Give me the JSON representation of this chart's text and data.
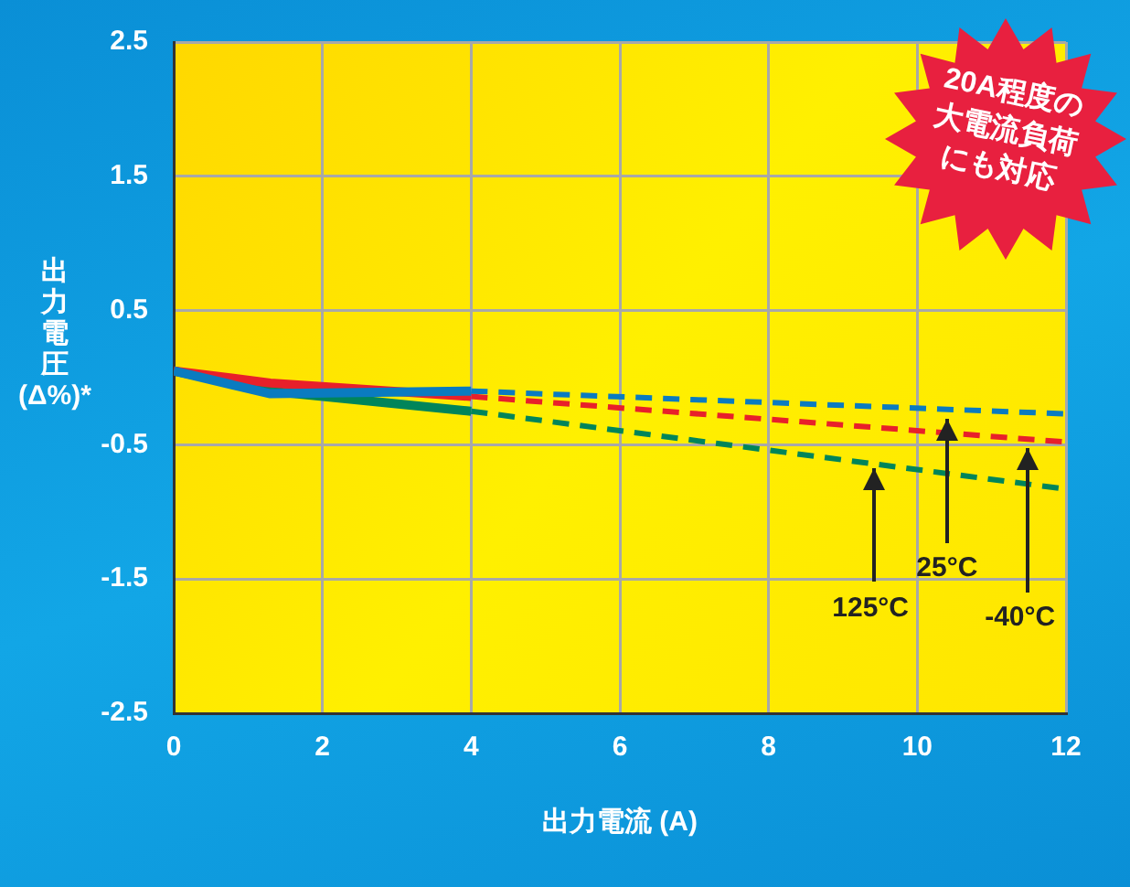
{
  "chart_data": {
    "type": "line",
    "xlabel": "出力電流 (A)",
    "ylabel": "出力電圧 (Δ%)*",
    "x": [
      0,
      1.3,
      4,
      12
    ],
    "series": [
      {
        "color": "#0a7bc0",
        "values": [
          0.05,
          -0.12,
          -0.1,
          null
        ],
        "line_style": "solid"
      },
      {
        "color": "#0a7bc0",
        "values": [
          null,
          null,
          -0.1,
          -0.27
        ],
        "line_style": "dashed"
      },
      {
        "color": "#e8202a",
        "values": [
          0.05,
          -0.04,
          -0.14,
          null
        ],
        "line_style": "solid"
      },
      {
        "color": "#e8202a",
        "values": [
          null,
          null,
          -0.14,
          -0.48
        ],
        "line_style": "dashed"
      },
      {
        "color": "#00855a",
        "values": [
          0.05,
          -0.1,
          -0.25,
          null
        ],
        "line_style": "solid"
      },
      {
        "color": "#00855a",
        "values": [
          null,
          null,
          -0.25,
          -0.83
        ],
        "line_style": "dashed"
      }
    ],
    "xlim": [
      0,
      12
    ],
    "xticks": [
      0,
      2,
      4,
      6,
      8,
      10,
      12
    ],
    "ylim": [
      -2.5,
      2.5
    ],
    "yticks": [
      -2.5,
      -1.5,
      -0.5,
      0.5,
      1.5,
      2.5
    ],
    "grid": true,
    "marker": "none",
    "legend": false,
    "annotations": [
      {
        "text": "125°C",
        "x": 9.42,
        "y": -0.67
      },
      {
        "text": "25°C",
        "x": 10.4,
        "y": -0.3
      },
      {
        "text": "-40°C",
        "x": 11.48,
        "y": -0.53
      },
      "20A程度の大電流負荷にも対応"
    ]
  }
}
